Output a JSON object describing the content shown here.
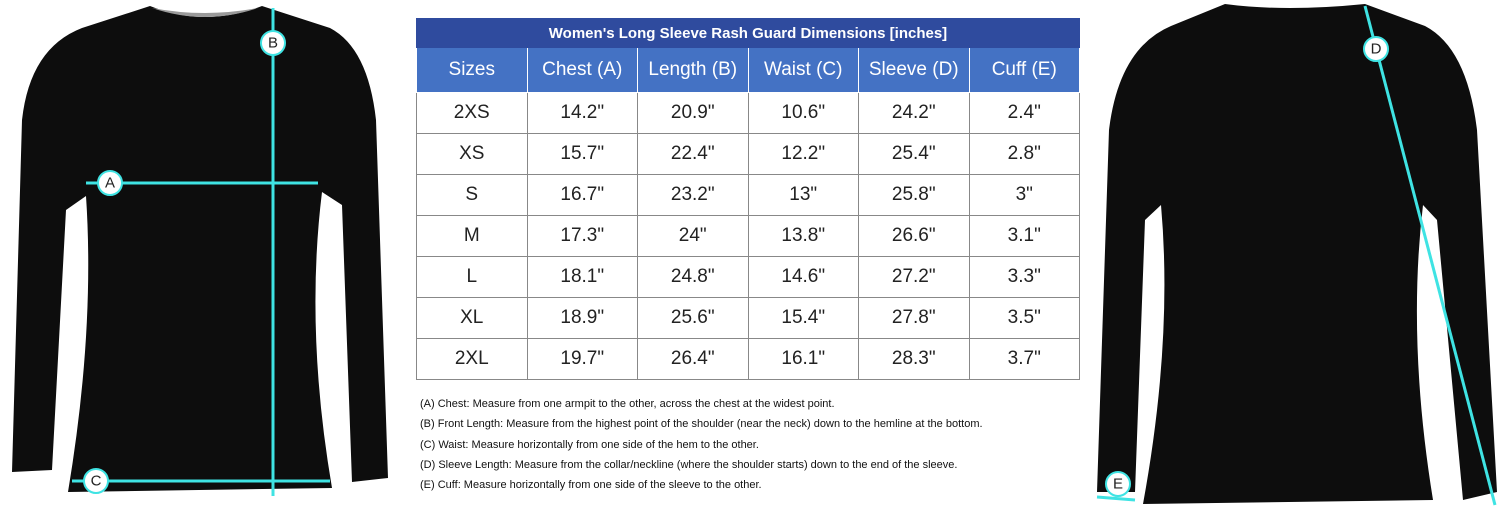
{
  "table": {
    "title": "Women's Long Sleeve Rash Guard Dimensions [inches]",
    "columns": [
      "Sizes",
      "Chest (A)",
      "Length (B)",
      "Waist (C)",
      "Sleeve (D)",
      "Cuff (E)"
    ],
    "rows": [
      [
        "2XS",
        "14.2\"",
        "20.9\"",
        "10.6\"",
        "24.2\"",
        "2.4\""
      ],
      [
        "XS",
        "15.7\"",
        "22.4\"",
        "12.2\"",
        "25.4\"",
        "2.8\""
      ],
      [
        "S",
        "16.7\"",
        "23.2\"",
        "13\"",
        "25.8\"",
        "3\""
      ],
      [
        "M",
        "17.3\"",
        "24\"",
        "13.8\"",
        "26.6\"",
        "3.1\""
      ],
      [
        "L",
        "18.1\"",
        "24.8\"",
        "14.6\"",
        "27.2\"",
        "3.3\""
      ],
      [
        "XL",
        "18.9\"",
        "25.6\"",
        "15.4\"",
        "27.8\"",
        "3.5\""
      ],
      [
        "2XL",
        "19.7\"",
        "26.4\"",
        "16.1\"",
        "28.3\"",
        "3.7\""
      ]
    ]
  },
  "notes": [
    "(A) Chest: Measure from one armpit to the other, across the chest at the widest point.",
    "(B) Front Length: Measure from the highest point of the shoulder (near the neck) down to the hemline at the bottom.",
    "(C) Waist: Measure horizontally from one side of the hem to the other.",
    "(D) Sleeve Length: Measure from the collar/neckline (where the shoulder starts) down to the end of the sleeve.",
    "(E) Cuff: Measure horizontally from one side of the sleeve to the other."
  ],
  "front_labels": [
    "B",
    "A",
    "C"
  ],
  "back_labels": [
    "D",
    "E"
  ]
}
